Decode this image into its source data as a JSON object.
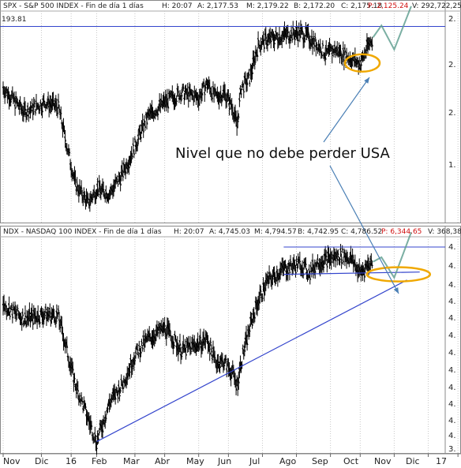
{
  "colors": {
    "price": "#000000",
    "trendline": "#3344cc",
    "level_line": "#3344cc",
    "highlight_ellipse": "#f0a800",
    "arrow": "#4a7fb5",
    "header_red": "#d01010",
    "grid": "#c8c8c8"
  },
  "chart_data": [
    {
      "type": "candlestick",
      "header": {
        "symbol": "SPX - S&P 500 INDEX - Fin de día 1 días",
        "h": "H: 20:07",
        "a": "A: 2,177.53",
        "m": "M: 2,179.22",
        "b": "B: 2,172.20",
        "c": "C: 2,175.18",
        "p": "P: 2,125.24",
        "v": "V: 292,722,25"
      },
      "level_label": "193.81",
      "ytick_labels": [
        "2.",
        "2.",
        "2.",
        "1."
      ],
      "x_end": 104,
      "y_range": [
        1800,
        2240
      ],
      "resistance_level": 2208,
      "price_anchors": [
        [
          0,
          2080
        ],
        [
          5,
          2030
        ],
        [
          10,
          2050
        ],
        [
          13,
          2040
        ],
        [
          17,
          1880
        ],
        [
          20,
          1840
        ],
        [
          22,
          1870
        ],
        [
          25,
          1860
        ],
        [
          28,
          1900
        ],
        [
          31,
          1960
        ],
        [
          34,
          2020
        ],
        [
          38,
          2050
        ],
        [
          42,
          2070
        ],
        [
          46,
          2060
        ],
        [
          48,
          2090
        ],
        [
          50,
          2060
        ],
        [
          52,
          2070
        ],
        [
          54,
          2040
        ],
        [
          55,
          2000
        ],
        [
          56,
          2080
        ],
        [
          58,
          2100
        ],
        [
          60,
          2170
        ],
        [
          62,
          2180
        ],
        [
          66,
          2190
        ],
        [
          70,
          2195
        ],
        [
          72,
          2185
        ],
        [
          74,
          2170
        ],
        [
          76,
          2150
        ],
        [
          78,
          2160
        ],
        [
          80,
          2150
        ],
        [
          82,
          2140
        ],
        [
          84,
          2130
        ],
        [
          85,
          2150
        ],
        [
          86,
          2170
        ],
        [
          87,
          2185
        ]
      ],
      "projection": [
        [
          87,
          2185
        ],
        [
          89,
          2210
        ],
        [
          92,
          2160
        ],
        [
          96,
          2250
        ]
      ],
      "support_ellipse": {
        "x": 84.5,
        "y": 2132
      },
      "annotation": "Nivel que no debe perder USA"
    },
    {
      "type": "candlestick",
      "header": {
        "symbol": "NDX - NASDAQ 100 INDEX - Fin de día 1 días",
        "h": "H: 20:07",
        "a": "A: 4,745.03",
        "m": "M: 4,794.57",
        "b": "B: 4,742.95",
        "c": "C: 4,786.52",
        "p": "P: 6,344.65",
        "v": "V: 368,38"
      },
      "ytick_labels": [
        "4.",
        "4.",
        "4.",
        "4.",
        "4.",
        "4.",
        "4.",
        "4.",
        "4.",
        "4.",
        "4.",
        "4.",
        "3."
      ],
      "x_end": 104,
      "y_range": [
        3950,
        4900
      ],
      "resistance_level": 4855,
      "support_level": 4735,
      "trendline": [
        [
          22,
          4000
        ],
        [
          95,
          4710
        ]
      ],
      "price_anchors": [
        [
          0,
          4600
        ],
        [
          5,
          4540
        ],
        [
          10,
          4560
        ],
        [
          13,
          4550
        ],
        [
          17,
          4250
        ],
        [
          20,
          4100
        ],
        [
          22,
          4000
        ],
        [
          25,
          4170
        ],
        [
          28,
          4250
        ],
        [
          31,
          4380
        ],
        [
          34,
          4450
        ],
        [
          38,
          4500
        ],
        [
          42,
          4400
        ],
        [
          46,
          4430
        ],
        [
          48,
          4450
        ],
        [
          50,
          4350
        ],
        [
          52,
          4350
        ],
        [
          54,
          4300
        ],
        [
          55,
          4250
        ],
        [
          56,
          4350
        ],
        [
          58,
          4500
        ],
        [
          60,
          4620
        ],
        [
          62,
          4700
        ],
        [
          66,
          4760
        ],
        [
          70,
          4780
        ],
        [
          72,
          4740
        ],
        [
          74,
          4790
        ],
        [
          76,
          4800
        ],
        [
          78,
          4810
        ],
        [
          80,
          4820
        ],
        [
          82,
          4800
        ],
        [
          84,
          4740
        ],
        [
          85,
          4760
        ],
        [
          86,
          4780
        ],
        [
          87,
          4790
        ]
      ],
      "projection": [
        [
          87,
          4790
        ],
        [
          89,
          4810
        ],
        [
          92,
          4720
        ],
        [
          96,
          4920
        ]
      ],
      "support_ellipse": {
        "x": 93,
        "y": 4735
      }
    }
  ],
  "x_axis": {
    "labels": [
      "Nov",
      "Dic",
      "16",
      "Feb",
      "Mar",
      "Abr",
      "May",
      "Jun",
      "Jul",
      "Ago",
      "Sep",
      "Oct",
      "Nov",
      "Dic",
      "17"
    ],
    "positions": [
      0,
      9,
      16,
      22,
      31,
      38,
      46,
      53,
      61,
      69,
      77,
      84,
      92,
      100,
      107
    ]
  }
}
